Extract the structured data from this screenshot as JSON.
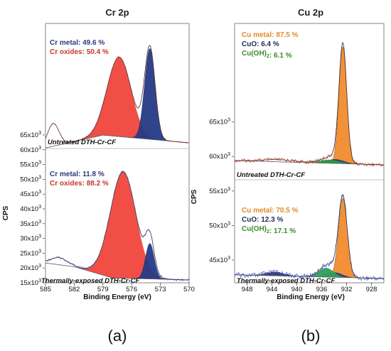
{
  "chart_data": [
    {
      "type": "line",
      "panel_label": "(a)",
      "title": "Cr 2p",
      "xlabel": "Binding Energy (eV)",
      "ylabel": "CPS",
      "xlim": [
        585,
        570
      ],
      "x_ticks": [
        "585",
        "582",
        "579",
        "576",
        "573",
        "570"
      ],
      "y_ticks": [
        "15x10^3",
        "20x10^3",
        "25x10^3",
        "30x10^3",
        "35x10^3",
        "40x10^3",
        "45x10^3",
        "50x10^3",
        "55x10^3",
        "60x10^3",
        "65x10^3"
      ],
      "spectra": [
        {
          "sample": "Untreated DTH-Cr-CF",
          "components": [
            {
              "name": "Cr metal",
              "value": "49.6 %",
              "color": "#2b3a7c"
            },
            {
              "name": "Cr oxides",
              "value": "50.4 %",
              "color": "#c0392b"
            }
          ],
          "peaks": [
            {
              "component": "Cr oxides",
              "center_eV": 577.3,
              "fill": "#f0463c"
            },
            {
              "component": "Cr metal",
              "center_eV": 574.1,
              "fill": "#253a86"
            }
          ]
        },
        {
          "sample": "Thermally-exposed DTH-Cr-CF",
          "components": [
            {
              "name": "Cr metal",
              "value": "11.8 %",
              "color": "#2b3a7c"
            },
            {
              "name": "Cr oxides",
              "value": "88.2 %",
              "color": "#c0392b"
            }
          ],
          "peaks": [
            {
              "component": "Cr oxides",
              "center_eV": 576.9,
              "fill": "#f0463c"
            },
            {
              "component": "Cr metal",
              "center_eV": 574.1,
              "fill": "#253a86"
            }
          ]
        }
      ]
    },
    {
      "type": "line",
      "panel_label": "(b)",
      "title": "Cu 2p",
      "xlabel": "Binding Energy (eV)",
      "ylabel": "CPS",
      "xlim": [
        950,
        926
      ],
      "x_ticks": [
        "948",
        "944",
        "940",
        "936",
        "932",
        "928"
      ],
      "y_ticks": [
        "45x10^3",
        "50x10^3",
        "55x10^3",
        "60x10^3",
        "65x10^3"
      ],
      "spectra": [
        {
          "sample": "Untreated DTH-Cr-CF",
          "components": [
            {
              "name": "Cu metal",
              "value": "87.5 %",
              "color": "#e08a2c"
            },
            {
              "name": "CuO",
              "value": "6.4 %",
              "color": "#1f2a5c"
            },
            {
              "name": "Cu(OH)2",
              "value": "6.1 %",
              "color": "#3c8a2e"
            }
          ],
          "peaks": [
            {
              "component": "Cu metal",
              "center_eV": 932.6,
              "fill": "#f28c2e"
            },
            {
              "component": "CuO",
              "center_eV": 933.8,
              "fill": "#2b3a7c"
            },
            {
              "component": "Cu(OH)2",
              "center_eV": 934.8,
              "fill": "#2e9a4a"
            }
          ]
        },
        {
          "sample": "Thermally-exposed DTH-Cr-CF",
          "components": [
            {
              "name": "Cu metal",
              "value": "70.5 %",
              "color": "#e08a2c"
            },
            {
              "name": "CuO",
              "value": "12.3 %",
              "color": "#1f2a5c"
            },
            {
              "name": "Cu(OH)2",
              "value": "17.1 %",
              "color": "#3c8a2e"
            }
          ],
          "peaks": [
            {
              "component": "Cu metal",
              "center_eV": 932.6,
              "fill": "#f28c2e"
            },
            {
              "component": "CuO",
              "center_eV": 934.0,
              "fill": "#2b3a7c"
            },
            {
              "component": "Cu(OH)2",
              "center_eV": 935.3,
              "fill": "#2ea05a"
            },
            {
              "component": "satellite",
              "center_eV": 943.5,
              "fill": "#2b3a7c"
            }
          ]
        }
      ]
    }
  ]
}
